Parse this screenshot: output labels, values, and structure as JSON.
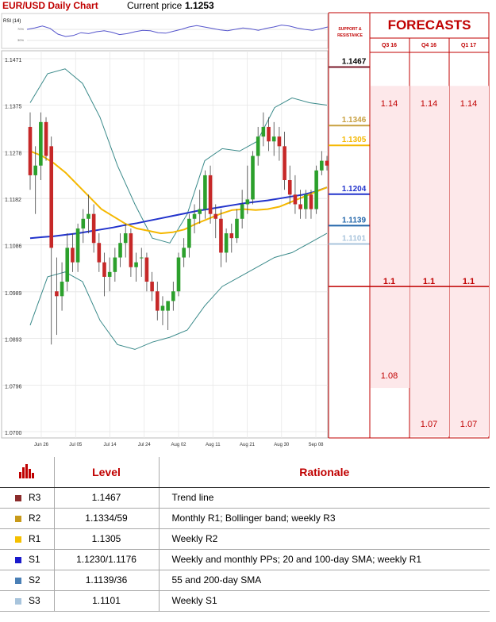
{
  "header": {
    "title": "EUR/USD Daily Chart",
    "price_label": "Current price",
    "price_value": "1.1253"
  },
  "rsi_label": "RSI (14)",
  "rsi_ticks": [
    "70%",
    "30%"
  ],
  "chart_data": {
    "type": "candlestick",
    "y_ticks": [
      "1.1471",
      "1.1375",
      "1.1278",
      "1.1182",
      "1.1086",
      "1.0989",
      "1.0893",
      "1.0796",
      "1.0700"
    ],
    "ylim": [
      1.07,
      1.1471
    ],
    "x_labels": [
      "Jun 26",
      "Jul 05",
      "Jul 14",
      "Jul 24",
      "Aug 02",
      "Aug 11",
      "Aug 21",
      "Aug 30",
      "Sep 08"
    ],
    "candles": [
      [
        1.133,
        1.136,
        1.12,
        1.123
      ],
      [
        1.123,
        1.129,
        1.115,
        1.125
      ],
      [
        1.125,
        1.136,
        1.122,
        1.134
      ],
      [
        1.134,
        1.135,
        1.126,
        1.127
      ],
      [
        1.129,
        1.131,
        1.088,
        1.108
      ],
      [
        1.099,
        1.106,
        1.09,
        1.098
      ],
      [
        1.098,
        1.105,
        1.095,
        1.101
      ],
      [
        1.101,
        1.111,
        1.099,
        1.108
      ],
      [
        1.108,
        1.111,
        1.103,
        1.105
      ],
      [
        1.105,
        1.113,
        1.103,
        1.112
      ],
      [
        1.112,
        1.116,
        1.109,
        1.114
      ],
      [
        1.114,
        1.119,
        1.111,
        1.115
      ],
      [
        1.115,
        1.117,
        1.107,
        1.109
      ],
      [
        1.109,
        1.111,
        1.103,
        1.105
      ],
      [
        1.105,
        1.107,
        1.098,
        1.102
      ],
      [
        1.102,
        1.106,
        1.099,
        1.103
      ],
      [
        1.103,
        1.108,
        1.101,
        1.106
      ],
      [
        1.106,
        1.111,
        1.104,
        1.109
      ],
      [
        1.109,
        1.113,
        1.106,
        1.111
      ],
      [
        1.111,
        1.112,
        1.102,
        1.104
      ],
      [
        1.104,
        1.107,
        1.101,
        1.105
      ],
      [
        1.106,
        1.108,
        1.102,
        1.106
      ],
      [
        1.106,
        1.107,
        1.099,
        1.101
      ],
      [
        1.101,
        1.103,
        1.097,
        1.099
      ],
      [
        1.099,
        1.101,
        1.093,
        1.095
      ],
      [
        1.095,
        1.098,
        1.092,
        1.096
      ],
      [
        1.095,
        1.097,
        1.091,
        1.097
      ],
      [
        1.097,
        1.101,
        1.095,
        1.099
      ],
      [
        1.099,
        1.107,
        1.098,
        1.106
      ],
      [
        1.106,
        1.11,
        1.104,
        1.108
      ],
      [
        1.108,
        1.115,
        1.106,
        1.114
      ],
      [
        1.114,
        1.117,
        1.111,
        1.115
      ],
      [
        1.115,
        1.12,
        1.113,
        1.116
      ],
      [
        1.116,
        1.124,
        1.114,
        1.123
      ],
      [
        1.123,
        1.125,
        1.113,
        1.115
      ],
      [
        1.115,
        1.117,
        1.11,
        1.114
      ],
      [
        1.114,
        1.116,
        1.104,
        1.107
      ],
      [
        1.107,
        1.112,
        1.105,
        1.111
      ],
      [
        1.111,
        1.113,
        1.107,
        1.11
      ],
      [
        1.11,
        1.116,
        1.109,
        1.114
      ],
      [
        1.114,
        1.12,
        1.112,
        1.117
      ],
      [
        1.117,
        1.125,
        1.115,
        1.118
      ],
      [
        1.118,
        1.128,
        1.117,
        1.127
      ],
      [
        1.127,
        1.133,
        1.125,
        1.131
      ],
      [
        1.131,
        1.136,
        1.129,
        1.133
      ],
      [
        1.133,
        1.135,
        1.128,
        1.13
      ],
      [
        1.13,
        1.134,
        1.127,
        1.131
      ],
      [
        1.131,
        1.133,
        1.126,
        1.129
      ],
      [
        1.129,
        1.132,
        1.12,
        1.122
      ],
      [
        1.122,
        1.125,
        1.117,
        1.119
      ],
      [
        1.119,
        1.123,
        1.115,
        1.117
      ],
      [
        1.117,
        1.12,
        1.114,
        1.116
      ],
      [
        1.116,
        1.12,
        1.114,
        1.119
      ],
      [
        1.119,
        1.12,
        1.114,
        1.116
      ],
      [
        1.116,
        1.125,
        1.115,
        1.124
      ],
      [
        1.124,
        1.128,
        1.123,
        1.126
      ],
      [
        1.126,
        1.127,
        1.124,
        1.125
      ]
    ],
    "series": [
      {
        "values": [
          1.11,
          1.1102,
          1.1104,
          1.1107,
          1.111,
          1.1114,
          1.1118,
          1.1122,
          1.1127,
          1.1131,
          1.1136,
          1.1141,
          1.1146,
          1.1151,
          1.1156,
          1.116,
          1.1164,
          1.1168,
          1.1172,
          1.1175,
          1.1178,
          1.1182,
          1.1186,
          1.119,
          1.1196,
          1.1205
        ],
        "color": "#2233cc"
      },
      {
        "values": [
          1.128,
          1.127,
          1.1255,
          1.1235,
          1.121,
          1.1185,
          1.116,
          1.1145,
          1.113,
          1.112,
          1.1115,
          1.111,
          1.1112,
          1.1118,
          1.113,
          1.114,
          1.115,
          1.1158,
          1.116,
          1.1158,
          1.116,
          1.1165,
          1.1175,
          1.1185,
          1.1195,
          1.1205
        ],
        "color": "#f5b800"
      }
    ],
    "bollinger": {
      "upper": [
        1.138,
        1.144,
        1.145,
        1.142,
        1.135,
        1.125,
        1.117,
        1.11,
        1.109,
        1.115,
        1.126,
        1.1285,
        1.128,
        1.13,
        1.137,
        1.139,
        1.138,
        1.1375
      ],
      "lower": [
        1.092,
        1.102,
        1.103,
        1.101,
        1.093,
        1.088,
        1.087,
        1.0885,
        1.0895,
        1.091,
        1.096,
        1.1,
        1.102,
        1.104,
        1.106,
        1.107,
        1.109,
        1.111
      ]
    },
    "rsi": [
      55,
      58,
      62,
      57,
      45,
      40,
      42,
      48,
      46,
      50,
      52,
      49,
      44,
      46,
      50,
      53,
      52,
      48,
      47,
      51,
      55,
      60,
      63,
      60,
      57,
      54,
      52,
      55,
      58,
      56,
      53,
      57,
      60,
      64,
      62,
      58,
      55,
      53,
      56,
      60
    ]
  },
  "sr_header": "SUPPORT & RESISTANCE",
  "sr_levels": [
    {
      "label": "1.1467",
      "value": 1.1467,
      "color": "#7a1a2a",
      "bold": true
    },
    {
      "label": "1.1346",
      "value": 1.1346,
      "color": "#c8a040",
      "bold": false
    },
    {
      "label": "1.1305",
      "value": 1.1305,
      "color": "#f5b800",
      "bold": false
    },
    {
      "label": "1.1204",
      "value": 1.1204,
      "color": "#2233cc",
      "bold": false
    },
    {
      "label": "1.1139",
      "value": 1.1139,
      "color": "#2266aa",
      "bold": false
    },
    {
      "label": "1.1101",
      "value": 1.1101,
      "color": "#a8c4dc",
      "bold": false
    }
  ],
  "forecasts": {
    "title": "FORECASTS",
    "columns": [
      "Q3 16",
      "Q4 16",
      "Q1 17"
    ],
    "upper": [
      "1.14",
      "1.14",
      "1.14"
    ],
    "middle": [
      "1.1",
      "1.1",
      "1.1"
    ],
    "lower": [
      "1.08",
      "1.07",
      "1.07"
    ],
    "values": {
      "upper": [
        1.14,
        1.14,
        1.14
      ],
      "middle": [
        1.1,
        1.1,
        1.1
      ],
      "lower": [
        1.08,
        1.07,
        1.07
      ]
    }
  },
  "table": {
    "headers": {
      "level": "Level",
      "rationale": "Rationale"
    },
    "rows": [
      {
        "name": "R3",
        "level": "1.1467",
        "rationale": "Trend line",
        "color": "#8b2b2b"
      },
      {
        "name": "R2",
        "level": "1.1334/59",
        "rationale": "Monthly R1; Bollinger band; weekly R3",
        "color": "#c89a1a"
      },
      {
        "name": "R1",
        "level": "1.1305",
        "rationale": "Weekly R2",
        "color": "#f5c000"
      },
      {
        "name": "S1",
        "level": "1.1230/1.1176",
        "rationale": "Weekly and monthly PPs; 20 and 100-day SMA; weekly R1",
        "color": "#1a1acc"
      },
      {
        "name": "S2",
        "level": "1.1139/36",
        "rationale": "55 and 200-day SMA",
        "color": "#4a7fb5"
      },
      {
        "name": "S3",
        "level": "1.1101",
        "rationale": "Weekly S1",
        "color": "#a8c4dc"
      }
    ]
  }
}
